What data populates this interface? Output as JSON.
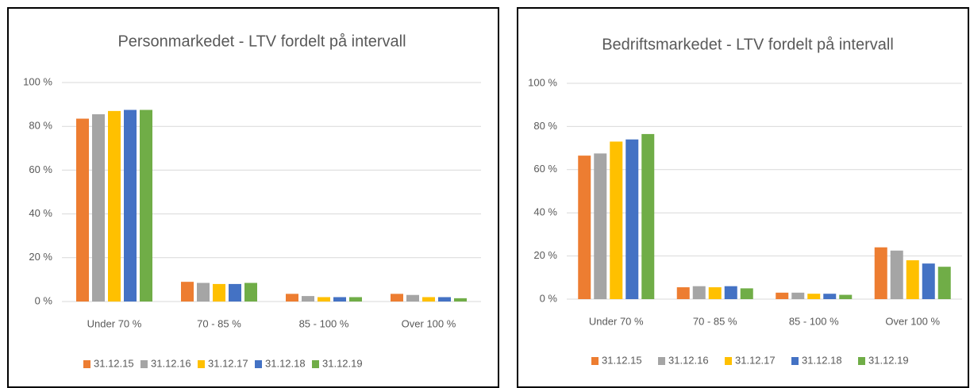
{
  "chart_data": [
    {
      "type": "bar",
      "title": "Personmarkedet - LTV fordelt på intervall",
      "categories": [
        "Under 70 %",
        "70 - 85 %",
        "85 - 100 %",
        "Over 100 %"
      ],
      "series": [
        {
          "name": "31.12.15",
          "color": "#ed7d31",
          "values": [
            83.5,
            9,
            3.5,
            3.5
          ]
        },
        {
          "name": "31.12.16",
          "color": "#a5a5a5",
          "values": [
            85.5,
            8.5,
            2.5,
            3
          ]
        },
        {
          "name": "31.12.17",
          "color": "#ffc000",
          "values": [
            87,
            8,
            2,
            2
          ]
        },
        {
          "name": "31.12.18",
          "color": "#4472c4",
          "values": [
            87.5,
            8,
            2,
            2
          ]
        },
        {
          "name": "31.12.19",
          "color": "#70ad47",
          "values": [
            87.5,
            8.5,
            2,
            1.5
          ]
        }
      ],
      "ylim": [
        0,
        100
      ],
      "yticks": [
        {
          "value": 0,
          "label": "0 %"
        },
        {
          "value": 20,
          "label": "20 %"
        },
        {
          "value": 40,
          "label": "40 %"
        },
        {
          "value": 60,
          "label": "60 %"
        },
        {
          "value": 80,
          "label": "80 %"
        },
        {
          "value": 100,
          "label": "100 %"
        }
      ],
      "grid": true,
      "legend": "bottom"
    },
    {
      "type": "bar",
      "title": "Bedriftsmarkedet - LTV fordelt på intervall",
      "categories": [
        "Under 70 %",
        "70 - 85 %",
        "85 - 100 %",
        "Over 100 %"
      ],
      "series": [
        {
          "name": "31.12.15",
          "color": "#ed7d31",
          "values": [
            66.5,
            5.5,
            3,
            24
          ]
        },
        {
          "name": "31.12.16",
          "color": "#a5a5a5",
          "values": [
            67.5,
            6,
            3,
            22.5
          ]
        },
        {
          "name": "31.12.17",
          "color": "#ffc000",
          "values": [
            73,
            5.5,
            2.5,
            18
          ]
        },
        {
          "name": "31.12.18",
          "color": "#4472c4",
          "values": [
            74,
            6,
            2.5,
            16.5
          ]
        },
        {
          "name": "31.12.19",
          "color": "#70ad47",
          "values": [
            76.5,
            5,
            2,
            15
          ]
        }
      ],
      "ylim": [
        0,
        100
      ],
      "yticks": [
        {
          "value": 0,
          "label": "0 %"
        },
        {
          "value": 20,
          "label": "20 %"
        },
        {
          "value": 40,
          "label": "40 %"
        },
        {
          "value": 60,
          "label": "60 %"
        },
        {
          "value": 80,
          "label": "80 %"
        },
        {
          "value": 100,
          "label": "100 %"
        }
      ],
      "grid": true,
      "legend": "bottom"
    }
  ]
}
